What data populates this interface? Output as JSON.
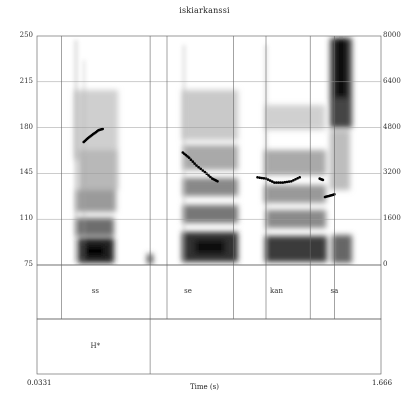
{
  "chart_data": {
    "type": "spectrogram",
    "title": "iskiarkanssi",
    "left_axis": {
      "ticks": [
        "250",
        "215",
        "180",
        "145",
        "110",
        "75"
      ],
      "ylim": [
        75,
        250
      ]
    },
    "right_axis": {
      "ticks": [
        "8000",
        "6400",
        "4800",
        "3200",
        "1600",
        "0"
      ],
      "ylim": [
        0,
        8000
      ]
    },
    "x_axis": {
      "label": "Time (s)",
      "start_label": "0.0331",
      "end_label": "1.666",
      "xlim": [
        0.0331,
        1.666
      ]
    },
    "pitch_contours": [
      {
        "points": [
          [
            0.255,
            169
          ],
          [
            0.275,
            172
          ],
          [
            0.3,
            175
          ],
          [
            0.325,
            178
          ],
          [
            0.345,
            179
          ]
        ]
      },
      {
        "points": [
          [
            0.725,
            161
          ],
          [
            0.755,
            157
          ],
          [
            0.79,
            151
          ],
          [
            0.83,
            146
          ],
          [
            0.865,
            141
          ],
          [
            0.89,
            139
          ]
        ]
      },
      {
        "points": [
          [
            1.08,
            142
          ],
          [
            1.12,
            141
          ],
          [
            1.16,
            138
          ],
          [
            1.2,
            138
          ],
          [
            1.24,
            139
          ],
          [
            1.28,
            142
          ]
        ]
      },
      {
        "points": [
          [
            1.375,
            141
          ],
          [
            1.39,
            140
          ]
        ]
      },
      {
        "points": [
          [
            1.4,
            127
          ],
          [
            1.425,
            128
          ],
          [
            1.445,
            129
          ]
        ]
      }
    ],
    "segment_tier": {
      "boundaries": [
        0.15,
        0.57,
        0.65,
        0.965,
        1.12,
        1.33,
        1.445
      ],
      "labels": [
        {
          "text": "ss",
          "t": 0.31
        },
        {
          "text": "se",
          "t": 0.75
        },
        {
          "text": "kan",
          "t": 1.17
        },
        {
          "text": "sa",
          "t": 1.445
        }
      ]
    },
    "tone_tier": {
      "boundaries": [
        0.57
      ],
      "labels": [
        {
          "text": "H*",
          "t": 0.31
        }
      ]
    }
  }
}
